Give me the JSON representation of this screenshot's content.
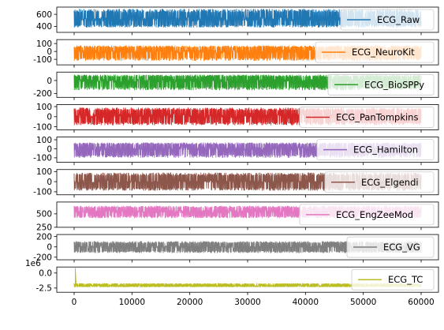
{
  "chart_data": {
    "type": "line",
    "title": "",
    "xlabel": "",
    "shared_x": true,
    "xlim": [
      -3000,
      63000
    ],
    "x_ticks": [
      0,
      10000,
      20000,
      30000,
      40000,
      50000,
      60000
    ],
    "x_tick_labels": [
      "0",
      "10000",
      "20000",
      "30000",
      "40000",
      "50000",
      "60000"
    ],
    "grid": false,
    "legend_placement": "right",
    "series_x_range": [
      0,
      60000
    ],
    "panels": [
      {
        "series_name": "ECG_Raw",
        "color": "#1f77b4",
        "ylim": [
          300,
          720
        ],
        "y_ticks": [
          400,
          600
        ],
        "y_tick_labels": [
          "400",
          "600"
        ],
        "baseline": 520,
        "spike_high": 690,
        "spike_low": 380,
        "noise": 35
      },
      {
        "series_name": "ECG_NeuroKit",
        "color": "#ff7f0e",
        "ylim": [
          -170,
          150
        ],
        "y_ticks": [
          -100,
          0,
          100
        ],
        "y_tick_labels": [
          "-100",
          "0",
          "100"
        ],
        "baseline": 0,
        "spike_high": 75,
        "spike_low": -120,
        "noise": 25
      },
      {
        "series_name": "ECG_BioSPPy",
        "color": "#2ca02c",
        "ylim": [
          -260,
          130
        ],
        "y_ticks": [
          -200,
          0
        ],
        "y_tick_labels": [
          "-200",
          "0"
        ],
        "baseline": 0,
        "spike_high": 90,
        "spike_low": -150,
        "noise": 30
      },
      {
        "series_name": "ECG_PanTompkins",
        "color": "#d62728",
        "ylim": [
          -130,
          120
        ],
        "y_ticks": [
          -100,
          0,
          100
        ],
        "y_tick_labels": [
          "-100",
          "0",
          "100"
        ],
        "baseline": 10,
        "spike_high": 90,
        "spike_low": -85,
        "noise": 25
      },
      {
        "series_name": "ECG_Hamilton",
        "color": "#9467bd",
        "ylim": [
          -150,
          130
        ],
        "y_ticks": [
          -100,
          0,
          100
        ],
        "y_tick_labels": [
          "-100",
          "0",
          "100"
        ],
        "baseline": 5,
        "spike_high": 70,
        "spike_low": -100,
        "noise": 25
      },
      {
        "series_name": "ECG_Elgendi",
        "color": "#8c564b",
        "ylim": [
          -130,
          120
        ],
        "y_ticks": [
          -100,
          0,
          100
        ],
        "y_tick_labels": [
          "-100",
          "0",
          "100"
        ],
        "baseline": 0,
        "spike_high": 90,
        "spike_low": -90,
        "noise": 10
      },
      {
        "series_name": "ECG_EngZeeMod",
        "color": "#e377c2",
        "ylim": [
          250,
          720
        ],
        "y_ticks": [
          250,
          500
        ],
        "y_tick_labels": [
          "250",
          "500"
        ],
        "baseline": 540,
        "spike_high": 650,
        "spike_low": 420,
        "noise": 35
      },
      {
        "series_name": "ECG_VG",
        "color": "#7f7f7f",
        "ylim": [
          -250,
          240
        ],
        "y_ticks": [
          -200,
          0,
          200
        ],
        "y_tick_labels": [
          "-200",
          "0",
          "200"
        ],
        "baseline": 0,
        "spike_high": 110,
        "spike_low": -120,
        "noise": 25
      },
      {
        "series_name": "ECG_TC",
        "color": "#bcbd22",
        "ylim": [
          -3.2,
          1.0
        ],
        "y_ticks": [
          -2.5,
          0.0
        ],
        "y_tick_labels": [
          "-2.5",
          "0.0"
        ],
        "offset_text": "1e6",
        "baseline": -2.1,
        "spike_high": -1.7,
        "spike_low": -2.35,
        "noise": 0.08,
        "extreme_x": 200,
        "extreme_y": 0.85
      }
    ]
  }
}
